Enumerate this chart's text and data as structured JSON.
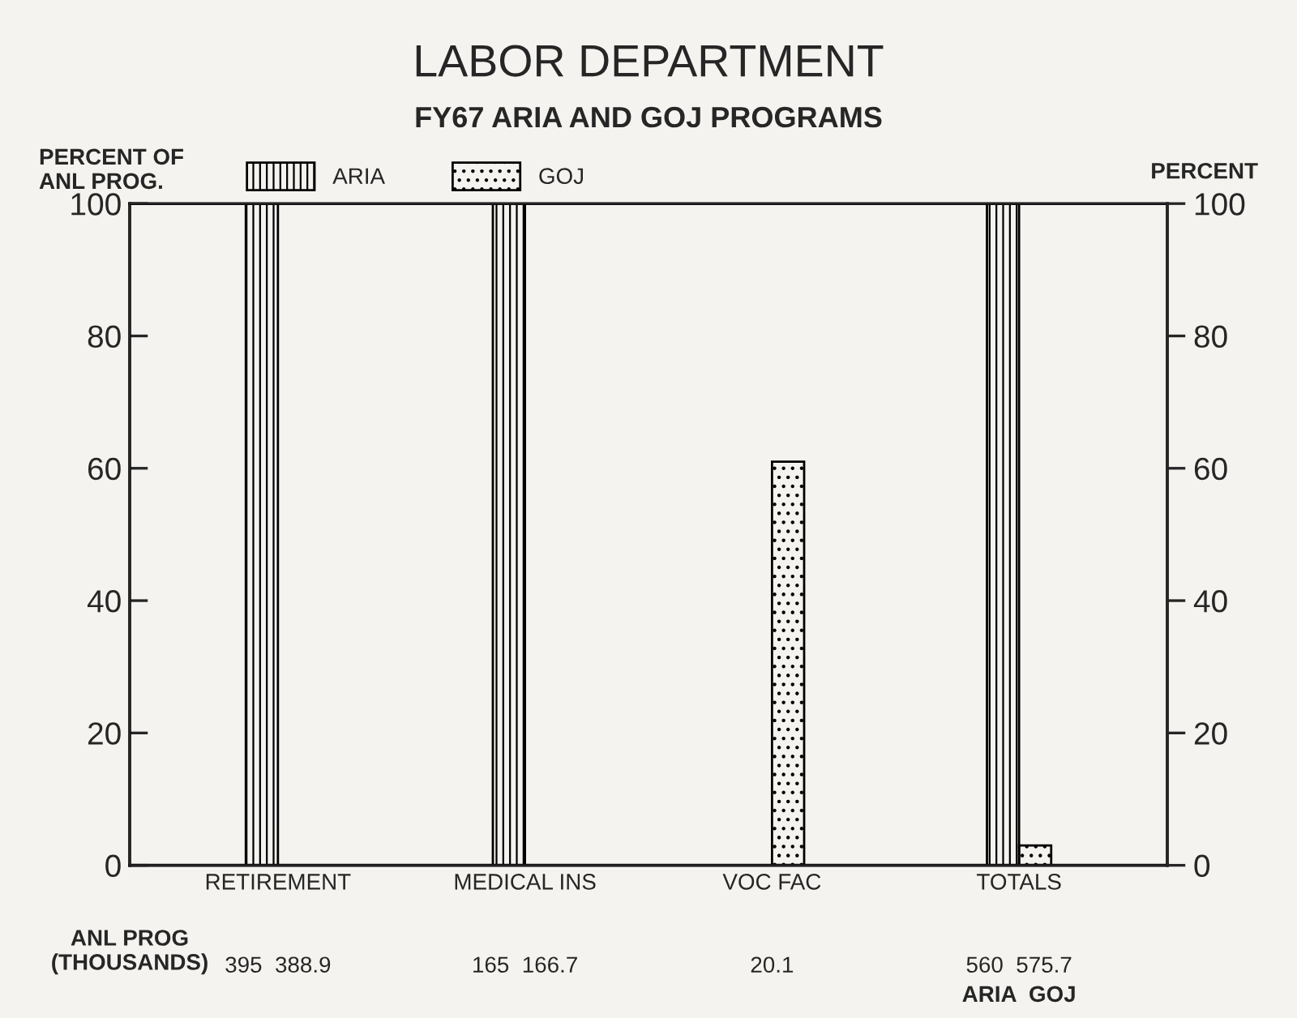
{
  "chart_data": {
    "type": "bar",
    "title": "LABOR DEPARTMENT",
    "subtitle": "FY67 ARIA AND GOJ PROGRAMS",
    "ylabel": "PERCENT OF\nANL PROG.",
    "y2label": "PERCENT",
    "categories": [
      "RETIREMENT",
      "MEDICAL INS",
      "VOC FAC",
      "TOTALS"
    ],
    "series": [
      {
        "name": "ARIA",
        "color": "#000000",
        "values": [
          100,
          100,
          null,
          100
        ]
      },
      {
        "name": "GOJ",
        "color": "#000000",
        "values": [
          null,
          null,
          61,
          3
        ]
      }
    ],
    "ylim": [
      0,
      100
    ],
    "yticks": [
      0,
      20,
      40,
      60,
      80,
      100
    ],
    "y2lim": [
      0,
      100
    ],
    "y2ticks": [
      0,
      20,
      40,
      60,
      80,
      100
    ],
    "legend": "top",
    "grid": false,
    "annotations": [
      "ANL PROG\n(THOUSANDS)",
      "395  388.9",
      "165  166.7",
      "20.1",
      "560  575.7",
      "ARIA  GOJ"
    ]
  }
}
